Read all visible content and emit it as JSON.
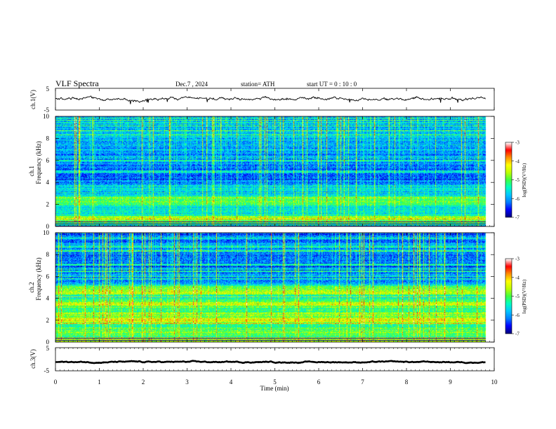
{
  "header": {
    "title": "VLF  Spectra",
    "date": "Dec.7  , 2024",
    "station": "station= ATH",
    "start": "start  UT  =    0  : 10 : 0"
  },
  "chart_data": [
    {
      "type": "line",
      "name": "ch1-waveform",
      "ylabel": "ch.1(V)",
      "yticks": [
        "5",
        "-5"
      ],
      "ylim": [
        -5,
        5
      ],
      "xlim": [
        0,
        10
      ],
      "data_end_min": 9.8,
      "baseline": 0.1,
      "noise_amplitude": 0.6
    },
    {
      "type": "heatmap",
      "name": "ch1-spectrogram",
      "ylabel": "ch.1\nFrequency  (kHz)",
      "ylabel_line1": "ch.1",
      "ylabel_line2": "Frequency  (kHz)",
      "yticks": [
        "0",
        "2",
        "4",
        "6",
        "8",
        "10"
      ],
      "ylim": [
        0,
        10
      ],
      "xlim": [
        0,
        10
      ],
      "data_end_min": 9.8,
      "band_levels_kHz": [
        {
          "f": 0.2,
          "v": -6.2
        },
        {
          "f": 0.5,
          "v": -5.2
        },
        {
          "f": 0.8,
          "v": -4.6
        },
        {
          "f": 1.0,
          "v": -5.4
        },
        {
          "f": 1.5,
          "v": -5.8
        },
        {
          "f": 2.0,
          "v": -5.0
        },
        {
          "f": 2.3,
          "v": -5.1
        },
        {
          "f": 3.0,
          "v": -5.9
        },
        {
          "f": 3.4,
          "v": -5.5
        },
        {
          "f": 4.2,
          "v": -6.3
        },
        {
          "f": 5.0,
          "v": -6.2
        },
        {
          "f": 6.5,
          "v": -6.0
        },
        {
          "f": 8.5,
          "v": -5.8
        },
        {
          "f": 10.0,
          "v": -5.9
        }
      ],
      "colorbar": {
        "label": "log(PSD)(V²/Hz)",
        "range": [
          -7,
          -3
        ],
        "ticks": [
          "-3",
          "-4",
          "-5",
          "-6",
          "-7"
        ]
      }
    },
    {
      "type": "heatmap",
      "name": "ch2-spectrogram",
      "ylabel": "ch.2\nFrequency  (kHz)",
      "ylabel_line1": "ch.2",
      "ylabel_line2": "Frequency  (kHz)",
      "yticks": [
        "0",
        "2",
        "4",
        "6",
        "8",
        "10"
      ],
      "ylim": [
        0,
        10
      ],
      "xlim": [
        0,
        10
      ],
      "data_end_min": 9.8,
      "band_levels_kHz": [
        {
          "f": 0.2,
          "v": -5.4
        },
        {
          "f": 0.6,
          "v": -4.9
        },
        {
          "f": 1.0,
          "v": -5.0
        },
        {
          "f": 1.5,
          "v": -5.3
        },
        {
          "f": 2.0,
          "v": -4.3
        },
        {
          "f": 2.4,
          "v": -4.9
        },
        {
          "f": 3.0,
          "v": -5.2
        },
        {
          "f": 3.5,
          "v": -4.5
        },
        {
          "f": 4.0,
          "v": -5.6
        },
        {
          "f": 4.6,
          "v": -4.5
        },
        {
          "f": 5.5,
          "v": -6.0
        },
        {
          "f": 7.0,
          "v": -6.3
        },
        {
          "f": 8.5,
          "v": -6.1
        },
        {
          "f": 10.0,
          "v": -6.2
        }
      ],
      "colorbar": {
        "label": "log(PSD)(V²/Hz)",
        "range": [
          -7,
          -3
        ],
        "ticks": [
          "-3",
          "-4",
          "-5",
          "-6",
          "-7"
        ]
      }
    },
    {
      "type": "line",
      "name": "ch3-waveform",
      "ylabel": "ch.3(V)",
      "yticks": [
        "5",
        "-5"
      ],
      "ylim": [
        -5,
        5
      ],
      "xlim": [
        0,
        10
      ],
      "data_end_min": 9.8,
      "baseline": -1.2,
      "noise_amplitude": 0.25
    }
  ],
  "xaxis": {
    "label": "Time  (min)",
    "ticks": [
      "0",
      "1",
      "2",
      "3",
      "4",
      "5",
      "6",
      "7",
      "8",
      "9",
      "10"
    ]
  },
  "colors": {
    "colormap": [
      "#000080",
      "#0000ff",
      "#0080ff",
      "#00c8ff",
      "#00ffc0",
      "#40ff40",
      "#c0ff00",
      "#ffff00",
      "#ff9000",
      "#ff0000",
      "#ffffff"
    ]
  }
}
